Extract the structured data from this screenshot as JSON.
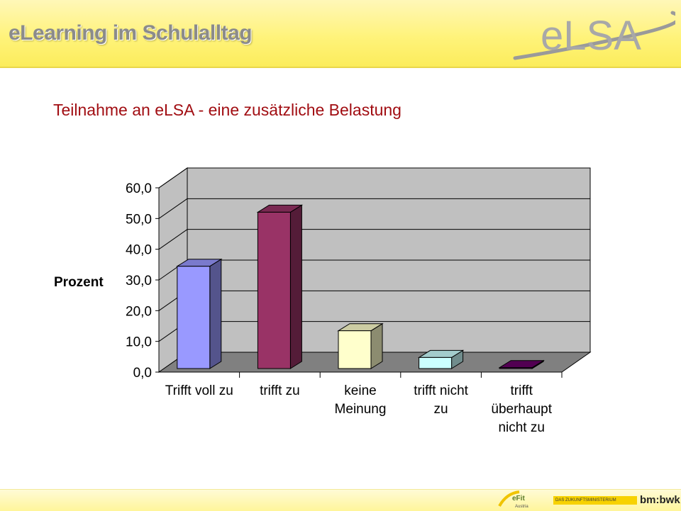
{
  "header": {
    "title": "eLearning im Schulalltag",
    "logo_text": "eLSA"
  },
  "slide": {
    "title": "Teilnahme an eLSA - eine zusätzliche Belastung"
  },
  "footer": {
    "efit_logo_text": "eFit Austria",
    "ministry_text": "DAS ZUKUNFTSMINISTERIUM",
    "bmbwk_text": "bm:bwk"
  },
  "chart_data": {
    "type": "bar",
    "title": "",
    "xlabel": "",
    "ylabel": "Prozent",
    "ylim": [
      0,
      60
    ],
    "y_ticks": [
      "0,0",
      "10,0",
      "20,0",
      "30,0",
      "40,0",
      "50,0",
      "60,0"
    ],
    "grid": true,
    "legend": "none",
    "categories": [
      [
        "Trifft voll zu"
      ],
      [
        "trifft zu"
      ],
      [
        "keine",
        "Meinung"
      ],
      [
        "trifft nicht",
        "zu"
      ],
      [
        "trifft",
        "überhaupt",
        "nicht zu"
      ]
    ],
    "values": [
      33.3,
      50.9,
      12.3,
      3.6,
      0.3
    ],
    "colors": [
      "#9999ff",
      "#993366",
      "#ffffcc",
      "#ccffff",
      "#660066"
    ],
    "wall_color": "#c0c0c0",
    "floor_color": "#808080"
  }
}
